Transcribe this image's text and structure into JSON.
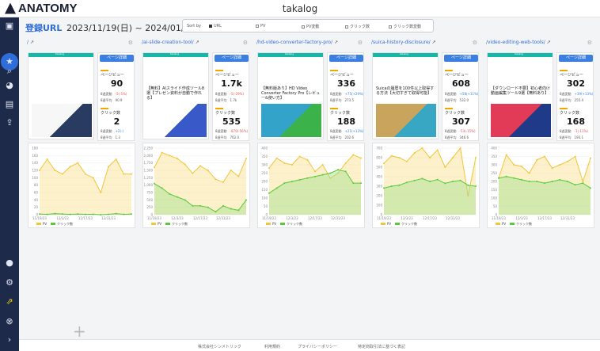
{
  "app": {
    "logo": "ANATOMY",
    "title": "takalog"
  },
  "header": {
    "title": "登録URL",
    "date_range": "2023/11/19(日) ~ 2024/01/13(土)"
  },
  "sort": {
    "label": "Sort by",
    "options": [
      {
        "label": "URL",
        "selected": true
      },
      {
        "label": "PV",
        "selected": false
      },
      {
        "label": "PV変動",
        "selected": false
      },
      {
        "label": "クリック数",
        "selected": false
      },
      {
        "label": "クリック数変動",
        "selected": false
      }
    ]
  },
  "labels": {
    "detail_button": "ページ詳細",
    "pageview": "ページビュー",
    "clicks": "クリック数",
    "change_8wk": "8週変動",
    "avg_8wk": "8週平均",
    "legend_pv": "PV",
    "legend_clicks": "クリック数"
  },
  "cards": [
    {
      "url": "/",
      "thumb_header": "takalog",
      "thumb_title": "",
      "pv": "90",
      "pv_change": "-5(-5%)",
      "pv_avg": "90.9",
      "clicks": "2",
      "clicks_change": "+2(-)",
      "clicks_avg": "1.3",
      "x_ticks": [
        "11/19/23",
        "12/3/23",
        "12/17/23",
        "12/31/23"
      ],
      "y_ticks": [
        "0",
        "20",
        "40",
        "60",
        "80",
        "100",
        "120",
        "140",
        "160",
        "180"
      ],
      "ylim": [
        0,
        180
      ],
      "pv_series": [
        120,
        150,
        120,
        110,
        130,
        140,
        110,
        100,
        60,
        130,
        150,
        110,
        110
      ],
      "click_series": [
        2,
        1,
        3,
        2,
        1,
        2,
        1,
        1,
        0,
        1,
        3,
        1,
        2
      ]
    },
    {
      "url": "/ai-slide-creation-tool/",
      "thumb_header": "takalog",
      "thumb_title": "【無料】AIスライド作成ツール8選【プレゼン資料が自動で作れる】",
      "pv": "1.7k",
      "pv_change": "-5(-29%)",
      "pv_avg": "1.7k",
      "clicks": "535",
      "clicks_change": "-870(-56%)",
      "clicks_avg": "762.0",
      "x_ticks": [
        "11/19/23",
        "12/3/23",
        "12/17/23",
        "12/31/23"
      ],
      "y_ticks": [
        "0",
        "250",
        "500",
        "750",
        "1,000",
        "1,250",
        "1,500",
        "1,750",
        "2,000",
        "2,250"
      ],
      "ylim": [
        0,
        2250
      ],
      "pv_series": [
        1600,
        2100,
        2000,
        1900,
        1700,
        1400,
        1650,
        1500,
        1200,
        1100,
        1500,
        1300,
        1900
      ],
      "click_series": [
        1050,
        900,
        700,
        600,
        500,
        300,
        300,
        250,
        100,
        300,
        200,
        150,
        500
      ]
    },
    {
      "url": "/hd-video-converter-factory-pro/",
      "thumb_header": "takalog",
      "thumb_title": "【無料版あり】HD Video Converter Factory Pro【レビュー&使い方】",
      "pv": "336",
      "pv_change": "+75(+29%)",
      "pv_avg": "273.5",
      "clicks": "188",
      "clicks_change": "+21(+13%)",
      "clicks_avg": "202.6",
      "x_ticks": [
        "11/19/23",
        "12/3/23",
        "12/17/23",
        "12/31/23"
      ],
      "y_ticks": [
        "0",
        "50",
        "100",
        "150",
        "200",
        "250",
        "300",
        "350",
        "400"
      ],
      "ylim": [
        0,
        400
      ],
      "pv_series": [
        280,
        340,
        310,
        300,
        350,
        330,
        260,
        300,
        220,
        250,
        310,
        360,
        340
      ],
      "click_series": [
        130,
        160,
        190,
        200,
        210,
        220,
        230,
        240,
        250,
        270,
        260,
        190,
        190
      ]
    },
    {
      "url": "/suica-history-disclosure/",
      "thumb_header": "takalog",
      "thumb_title": "Suicaの履歴を100件以上取得する方法【大切すぎて取得可能】",
      "pv": "608",
      "pv_change": "+58(+11%)",
      "pv_avg": "532.0",
      "clicks": "307",
      "clicks_change": "-53(-15%)",
      "clicks_avg": "346.6",
      "x_ticks": [
        "11/19/23",
        "12/3/23",
        "12/17/23",
        "12/31/23"
      ],
      "y_ticks": [
        "0",
        "100",
        "200",
        "300",
        "400",
        "500",
        "600",
        "700"
      ],
      "ylim": [
        0,
        700
      ],
      "pv_series": [
        540,
        620,
        600,
        560,
        650,
        700,
        600,
        680,
        500,
        600,
        700,
        200,
        600
      ],
      "click_series": [
        280,
        300,
        310,
        340,
        360,
        380,
        350,
        370,
        330,
        350,
        360,
        310,
        300
      ]
    },
    {
      "url": "/video-editing-web-tools/",
      "thumb_header": "takalog",
      "thumb_title": "【ダウンロード不要】初心者向け動画編集ツール9選【無料あり】",
      "pv": "302",
      "pv_change": "+39(+13%)",
      "pv_avg": "255.4",
      "clicks": "168",
      "clicks_change": "-1(-11%)",
      "clicks_avg": "193.1",
      "x_ticks": [
        "11/19/23",
        "12/3/23",
        "12/17/23",
        "12/31/23"
      ],
      "y_ticks": [
        "0",
        "50",
        "100",
        "150",
        "200",
        "250",
        "300",
        "350",
        "400"
      ],
      "ylim": [
        0,
        400
      ],
      "pv_series": [
        220,
        360,
        300,
        290,
        250,
        330,
        350,
        280,
        300,
        320,
        350,
        200,
        340
      ],
      "click_series": [
        220,
        230,
        220,
        210,
        200,
        200,
        190,
        200,
        210,
        200,
        180,
        190,
        160
      ]
    }
  ],
  "footer": [
    "株式会社シンメトリック",
    "利用規約",
    "プライバシーポリシー",
    "特定商取引法に基づく表記"
  ],
  "sidebar_icons": [
    "dashboard-icon",
    "star-icon",
    "search-icon",
    "pie-chart-icon",
    "report-icon",
    "export-icon",
    "user-icon",
    "gear-icon",
    "upgrade-icon",
    "close-icon",
    "expand-icon"
  ]
}
